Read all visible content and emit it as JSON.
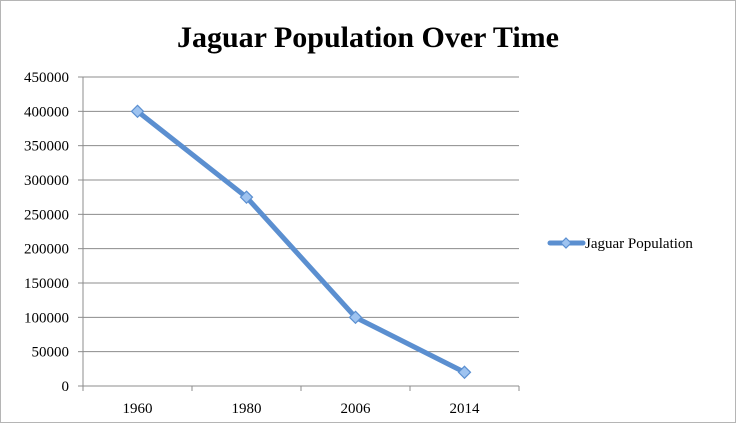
{
  "chart_data": {
    "type": "line",
    "title": "Jaguar Population Over Time",
    "xlabel": "",
    "ylabel": "",
    "categories": [
      "1960",
      "1980",
      "2006",
      "2014"
    ],
    "series": [
      {
        "name": "Jaguar Population",
        "values": [
          400000,
          275000,
          100000,
          20000
        ],
        "color": "#5b8fd0",
        "marker": "diamond"
      }
    ],
    "ylim": [
      0,
      450000
    ],
    "yticks": [
      "0",
      "50000",
      "100000",
      "150000",
      "200000",
      "250000",
      "300000",
      "350000",
      "400000",
      "450000"
    ],
    "grid": true,
    "legend_position": "right"
  }
}
